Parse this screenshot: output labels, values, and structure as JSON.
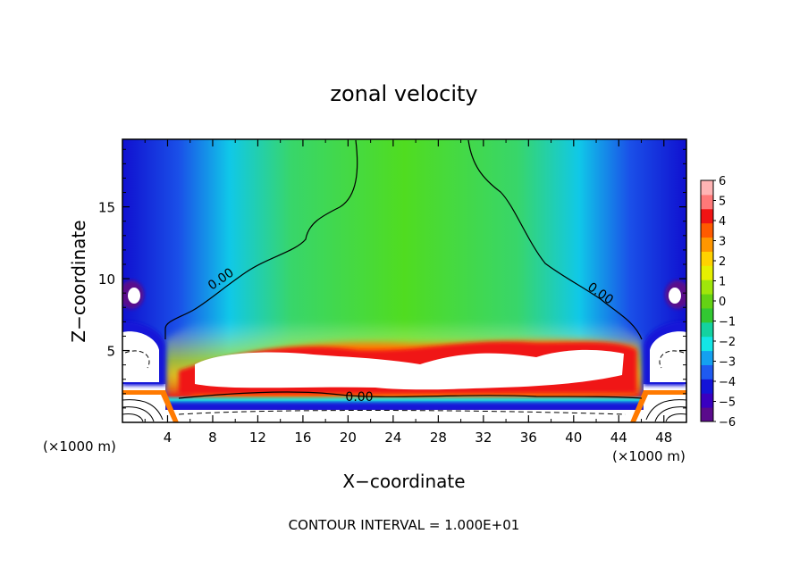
{
  "chart_data": {
    "type": "heatmap",
    "title": "zonal velocity",
    "xlabel": "X−coordinate",
    "ylabel": "Z−coordinate",
    "x_unit_left": "(×1000 m)",
    "x_unit_right": "(×1000 m)",
    "xlim": [
      0,
      50
    ],
    "ylim": [
      0,
      19.7
    ],
    "x_ticks": [
      4,
      8,
      12,
      16,
      20,
      24,
      28,
      32,
      36,
      40,
      44,
      48
    ],
    "y_ticks": [
      5,
      10,
      15
    ],
    "footer": "CONTOUR INTERVAL = 1.000E+01",
    "colorbar": {
      "min": -6,
      "max": 6,
      "labels": [
        "6",
        "5",
        "4",
        "3",
        "2",
        "1",
        "0",
        "−1",
        "−2",
        "−3",
        "−4",
        "−5",
        "−6"
      ],
      "colors": [
        "#5a0a8c",
        "#3a00c0",
        "#1414d8",
        "#1e5af0",
        "#14a0f0",
        "#14e6e6",
        "#14d2a0",
        "#32c832",
        "#64d214",
        "#a0e60a",
        "#e6f000",
        "#ffd200",
        "#ff9600",
        "#ff5a00",
        "#f01414",
        "#ff7878",
        "#ffb4b4"
      ]
    },
    "contour_labels": [
      {
        "text": "0.00",
        "x": 8.7,
        "z": 10.0
      },
      {
        "text": "0.00",
        "x": 42.4,
        "z": 9.0
      },
      {
        "text": "0.00",
        "x": 21.0,
        "z": 1.8
      }
    ]
  }
}
